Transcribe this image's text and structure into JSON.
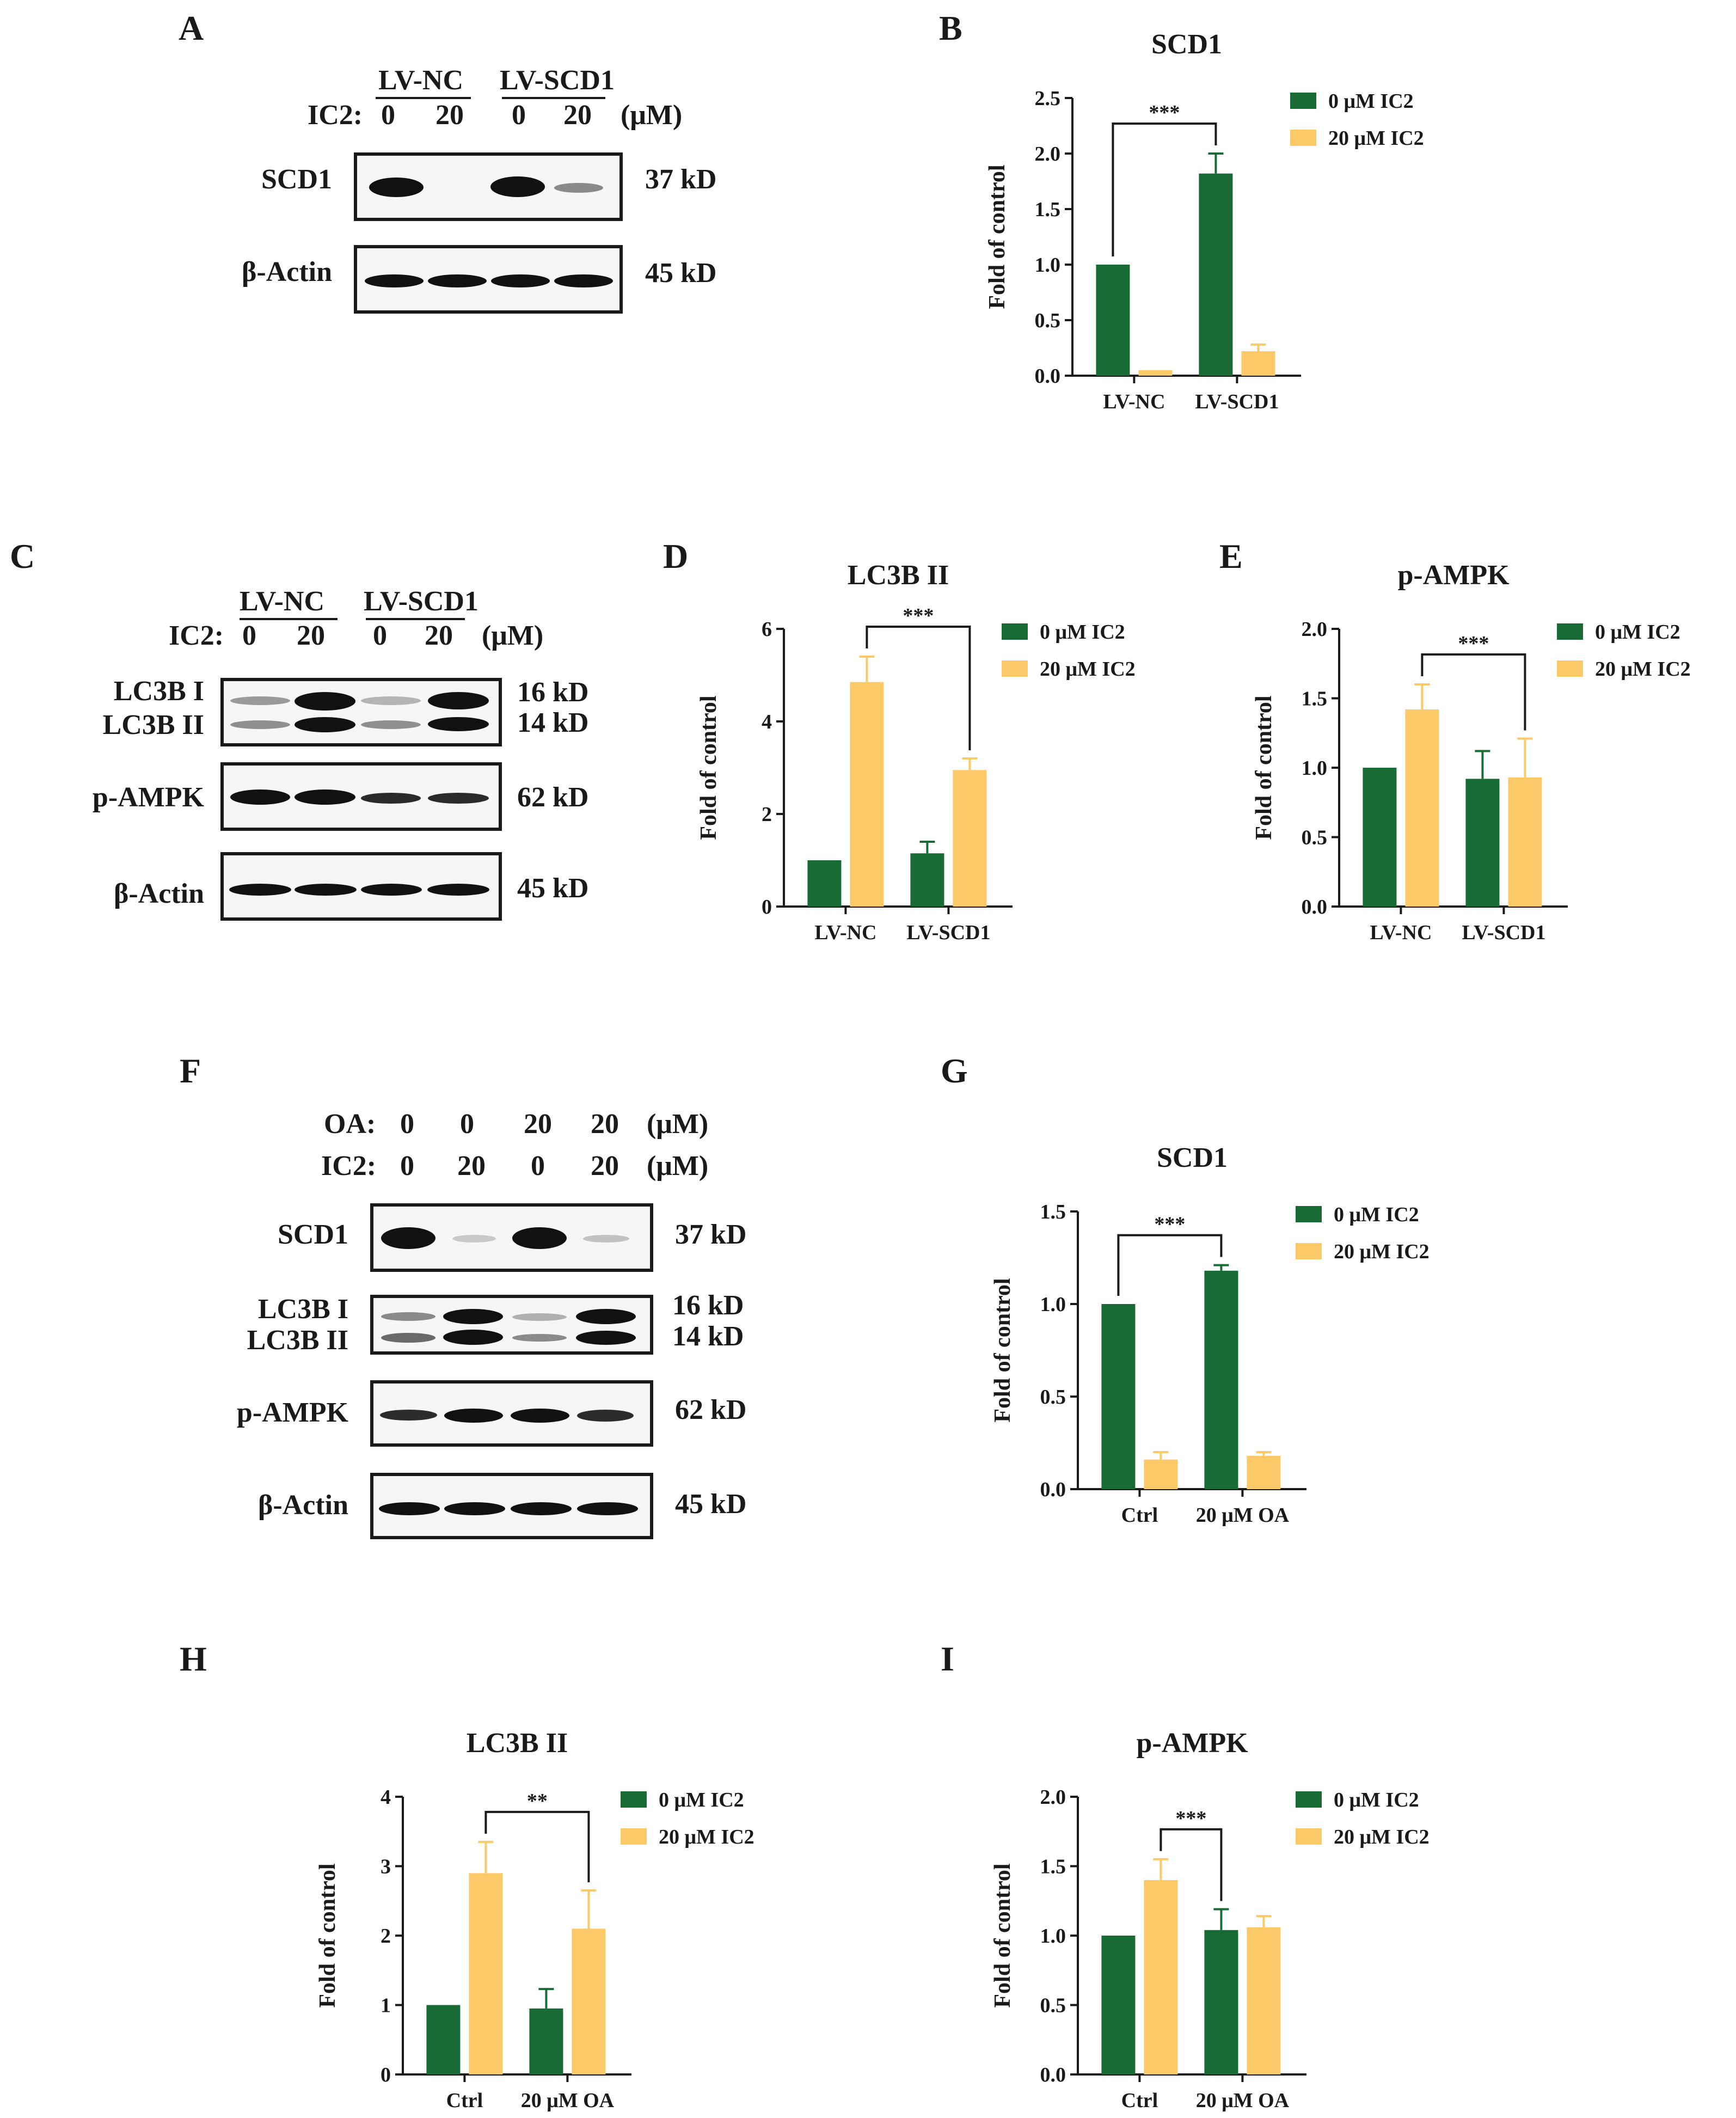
{
  "colors": {
    "dark_green": "#196b35",
    "light_yellow": "#fbc967",
    "axis": "#1a1a1a"
  },
  "panels": {
    "A": "A",
    "B": "B",
    "C": "C",
    "D": "D",
    "E": "E",
    "F": "F",
    "G": "G",
    "H": "H",
    "I": "I"
  },
  "blot_A": {
    "group1": "LV-NC",
    "group2": "LV-SCD1",
    "ic2_label": "IC2:",
    "doses": [
      "0",
      "20",
      "0",
      "20"
    ],
    "unit": "(μM)",
    "rows": [
      {
        "name": "SCD1",
        "size": "37 kD"
      },
      {
        "name": "β-Actin",
        "size": "45 kD"
      }
    ]
  },
  "blot_C": {
    "group1": "LV-NC",
    "group2": "LV-SCD1",
    "ic2_label": "IC2:",
    "doses": [
      "0",
      "20",
      "0",
      "20"
    ],
    "unit": "(μM)",
    "rows": [
      {
        "name": "LC3B I",
        "size": "16 kD"
      },
      {
        "name": "LC3B II",
        "size": "14 kD"
      },
      {
        "name": "p-AMPK",
        "size": "62 kD"
      },
      {
        "name": "β-Actin",
        "size": "45 kD"
      }
    ]
  },
  "blot_F": {
    "oa_label": "OA:",
    "oa_doses": [
      "0",
      "0",
      "20",
      "20"
    ],
    "ic2_label": "IC2:",
    "ic2_doses": [
      "0",
      "20",
      "0",
      "20"
    ],
    "unit": "(μM)",
    "rows": [
      {
        "name": "SCD1",
        "size": "37 kD"
      },
      {
        "name": "LC3B I",
        "size": "16 kD"
      },
      {
        "name": "LC3B II",
        "size": "14 kD"
      },
      {
        "name": "p-AMPK",
        "size": "62 kD"
      },
      {
        "name": "β-Actin",
        "size": "45 kD"
      }
    ]
  },
  "chart_data": [
    {
      "panel": "B",
      "type": "bar",
      "title": "SCD1",
      "ylabel": "Fold of control",
      "categories": [
        "LV-NC",
        "LV-SCD1"
      ],
      "ylim": [
        0,
        2.5
      ],
      "yticks": [
        "0.0",
        "0.5",
        "1.0",
        "1.5",
        "2.0",
        "2.5"
      ],
      "series": [
        {
          "name": "0 μM IC2",
          "values": [
            1.0,
            1.82
          ],
          "errors": [
            0,
            0.18
          ]
        },
        {
          "name": "20 μM IC2",
          "values": [
            0.05,
            0.22
          ],
          "errors": [
            0,
            0.06
          ]
        }
      ],
      "significance": "***"
    },
    {
      "panel": "D",
      "type": "bar",
      "title": "LC3B II",
      "ylabel": "Fold of control",
      "categories": [
        "LV-NC",
        "LV-SCD1"
      ],
      "ylim": [
        0,
        6
      ],
      "yticks": [
        "0",
        "2",
        "4",
        "6"
      ],
      "series": [
        {
          "name": "0 μM IC2",
          "values": [
            1.0,
            1.15
          ],
          "errors": [
            0,
            0.25
          ]
        },
        {
          "name": "20 μM IC2",
          "values": [
            4.85,
            2.95
          ],
          "errors": [
            0.55,
            0.25
          ]
        }
      ],
      "significance": "***"
    },
    {
      "panel": "E",
      "type": "bar",
      "title": "p-AMPK",
      "ylabel": "Fold of control",
      "categories": [
        "LV-NC",
        "LV-SCD1"
      ],
      "ylim": [
        0,
        2.0
      ],
      "yticks": [
        "0.0",
        "0.5",
        "1.0",
        "1.5",
        "2.0"
      ],
      "series": [
        {
          "name": "0 μM IC2",
          "values": [
            1.0,
            0.92
          ],
          "errors": [
            0,
            0.2
          ]
        },
        {
          "name": "20 μM IC2",
          "values": [
            1.42,
            0.93
          ],
          "errors": [
            0.18,
            0.28
          ]
        }
      ],
      "significance": "***"
    },
    {
      "panel": "G",
      "type": "bar",
      "title": "SCD1",
      "ylabel": "Fold of control",
      "categories": [
        "Ctrl",
        "20 μM OA"
      ],
      "ylim": [
        0,
        1.5
      ],
      "yticks": [
        "0.0",
        "0.5",
        "1.0",
        "1.5"
      ],
      "series": [
        {
          "name": "0 μM IC2",
          "values": [
            1.0,
            1.18
          ],
          "errors": [
            0,
            0.03
          ]
        },
        {
          "name": "20 μM IC2",
          "values": [
            0.16,
            0.18
          ],
          "errors": [
            0.04,
            0.02
          ]
        }
      ],
      "significance": "***"
    },
    {
      "panel": "H",
      "type": "bar",
      "title": "LC3B II",
      "ylabel": "Fold of control",
      "categories": [
        "Ctrl",
        "20 μM OA"
      ],
      "ylim": [
        0,
        4
      ],
      "yticks": [
        "0",
        "1",
        "2",
        "3",
        "4"
      ],
      "series": [
        {
          "name": "0 μM IC2",
          "values": [
            1.0,
            0.95
          ],
          "errors": [
            0,
            0.28
          ]
        },
        {
          "name": "20 μM IC2",
          "values": [
            2.9,
            2.1
          ],
          "errors": [
            0.45,
            0.55
          ]
        }
      ],
      "significance": "**"
    },
    {
      "panel": "I",
      "type": "bar",
      "title": "p-AMPK",
      "ylabel": "Fold of control",
      "categories": [
        "Ctrl",
        "20 μM OA"
      ],
      "ylim": [
        0,
        2.0
      ],
      "yticks": [
        "0.0",
        "0.5",
        "1.0",
        "1.5",
        "2.0"
      ],
      "series": [
        {
          "name": "0 μM IC2",
          "values": [
            1.0,
            1.04
          ],
          "errors": [
            0,
            0.15
          ]
        },
        {
          "name": "20 μM IC2",
          "values": [
            1.4,
            1.06
          ],
          "errors": [
            0.15,
            0.08
          ]
        }
      ],
      "significance": "***"
    }
  ]
}
